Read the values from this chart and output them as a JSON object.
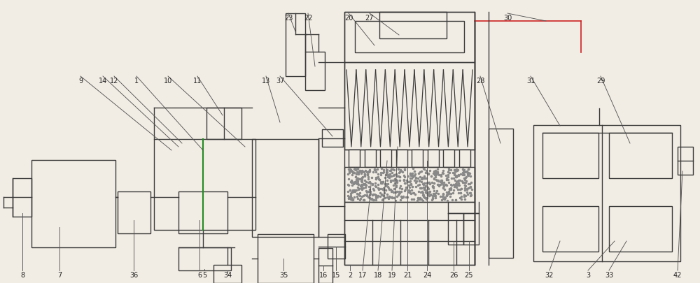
{
  "bg_color": "#f2ede4",
  "line_color": "#3a3a3a",
  "lw": 1.0,
  "fig_w": 10.0,
  "fig_h": 4.06
}
